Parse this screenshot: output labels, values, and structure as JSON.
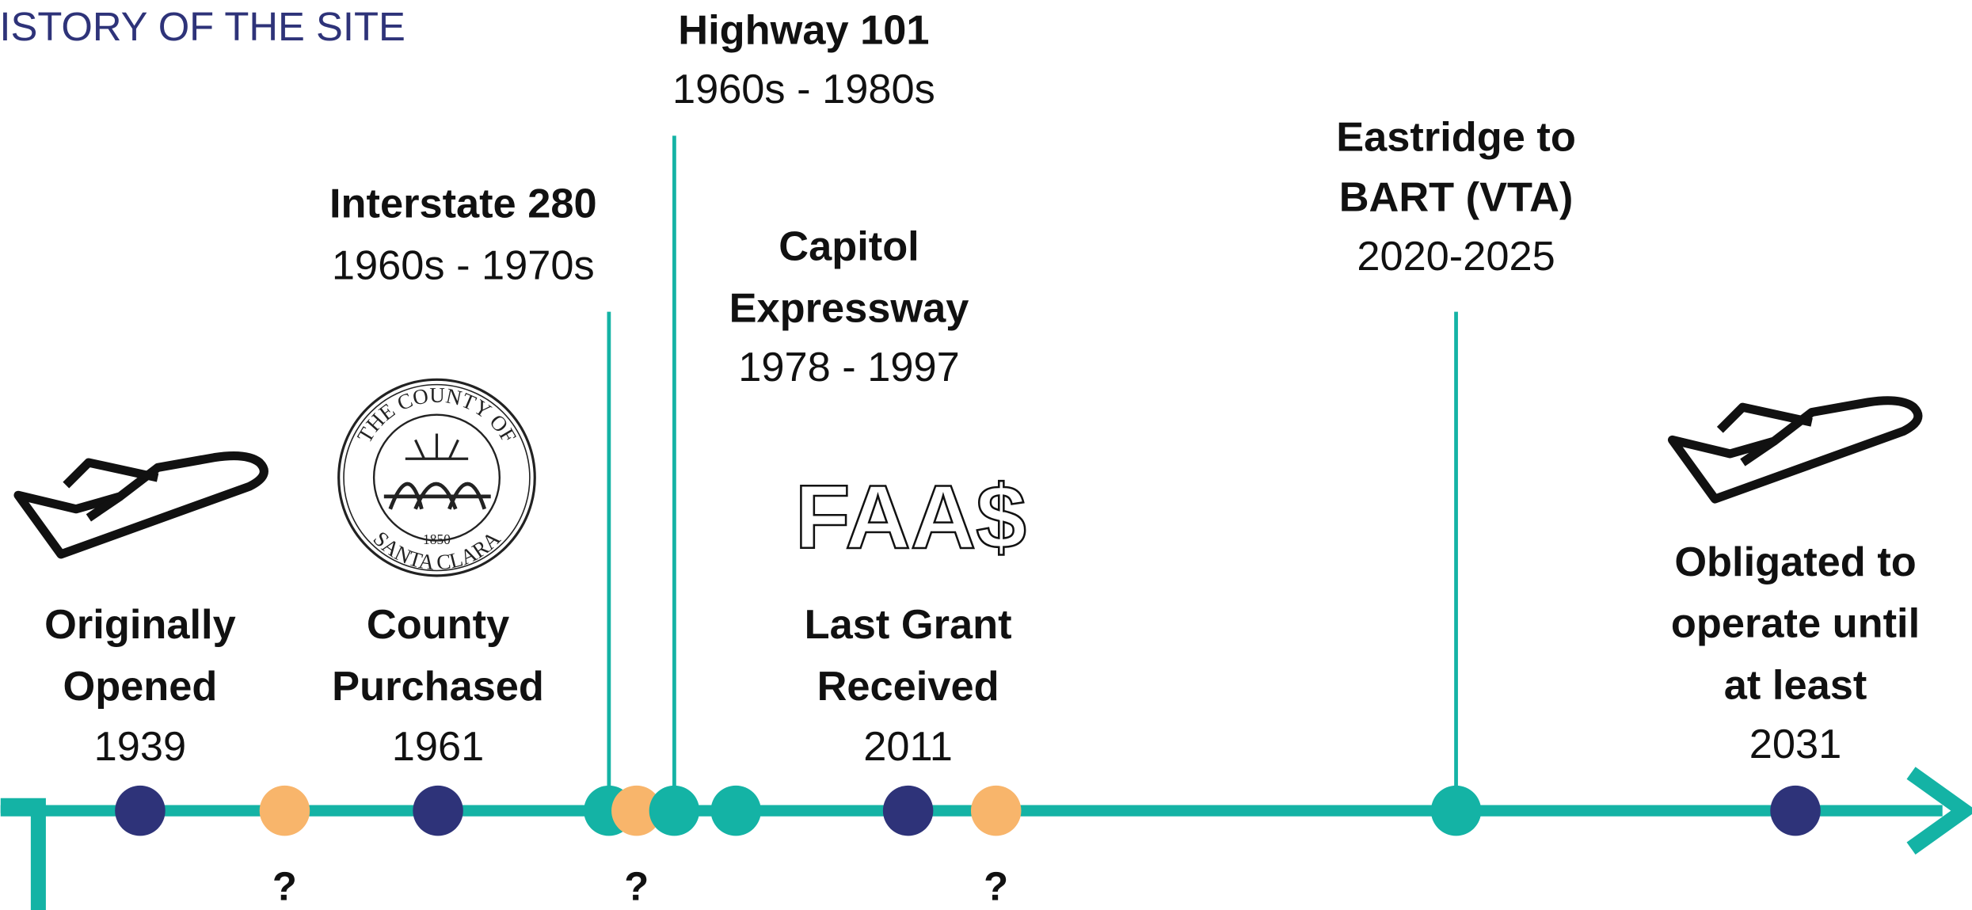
{
  "title": "HISTORY OF THE SITE",
  "roads": [
    {
      "lines": [
        "Interstate 280"
      ],
      "years": "1960s - 1970s"
    },
    {
      "lines": [
        "Highway 101"
      ],
      "years": "1960s - 1980s"
    },
    {
      "lines": [
        "Capitol",
        "Expressway"
      ],
      "years": "1978 - 1997"
    },
    {
      "lines": [
        "Eastridge to",
        "BART (VTA)"
      ],
      "years": "2020-2025"
    }
  ],
  "events": [
    {
      "lines": [
        "Originally",
        "Opened"
      ],
      "year": "1939"
    },
    {
      "lines": [
        "County",
        "Purchased"
      ],
      "year": "1961"
    },
    {
      "lines": [
        "Last Grant",
        "Received"
      ],
      "year": "2011"
    },
    {
      "lines": [
        "Obligated to",
        "operate until",
        "at least"
      ],
      "year": "2031"
    }
  ],
  "unknowns": [
    "?",
    "?",
    "?"
  ],
  "seal": {
    "top": "THE COUNTY OF",
    "bottom": "SANTA CLARA",
    "year": "1850"
  },
  "logo": "FAA$"
}
